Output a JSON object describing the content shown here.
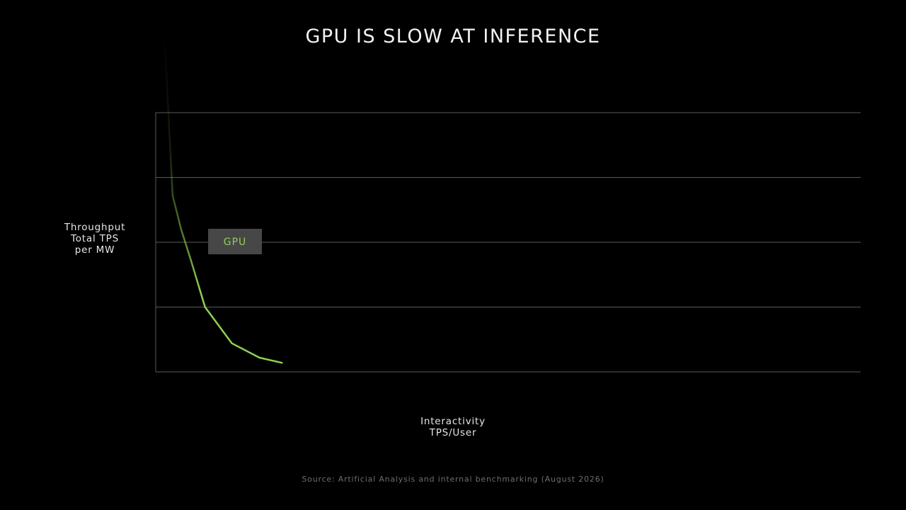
{
  "slide": {
    "title": "GPU IS SLOW AT INFERENCE",
    "source": "Source: Artificial Analysis and internal benchmarking (August 2026)"
  },
  "chart_data": {
    "type": "line",
    "title": "GPU IS SLOW AT INFERENCE",
    "ylabel_lines": [
      "Throughput",
      "Total TPS",
      "per MW"
    ],
    "xlabel_lines": [
      "Interactivity",
      "TPS/User"
    ],
    "xlim": [
      0,
      100
    ],
    "ylim": [
      0,
      100
    ],
    "grid": true,
    "series": [
      {
        "name": "GPU",
        "color": "#8fd14f",
        "x": [
          1.8,
          2.4,
          3.6,
          5.0,
          7.0,
          10.8,
          14.7,
          17.9
        ],
        "y": [
          100,
          68,
          55,
          43,
          25,
          11,
          5.5,
          3.5
        ]
      }
    ]
  }
}
